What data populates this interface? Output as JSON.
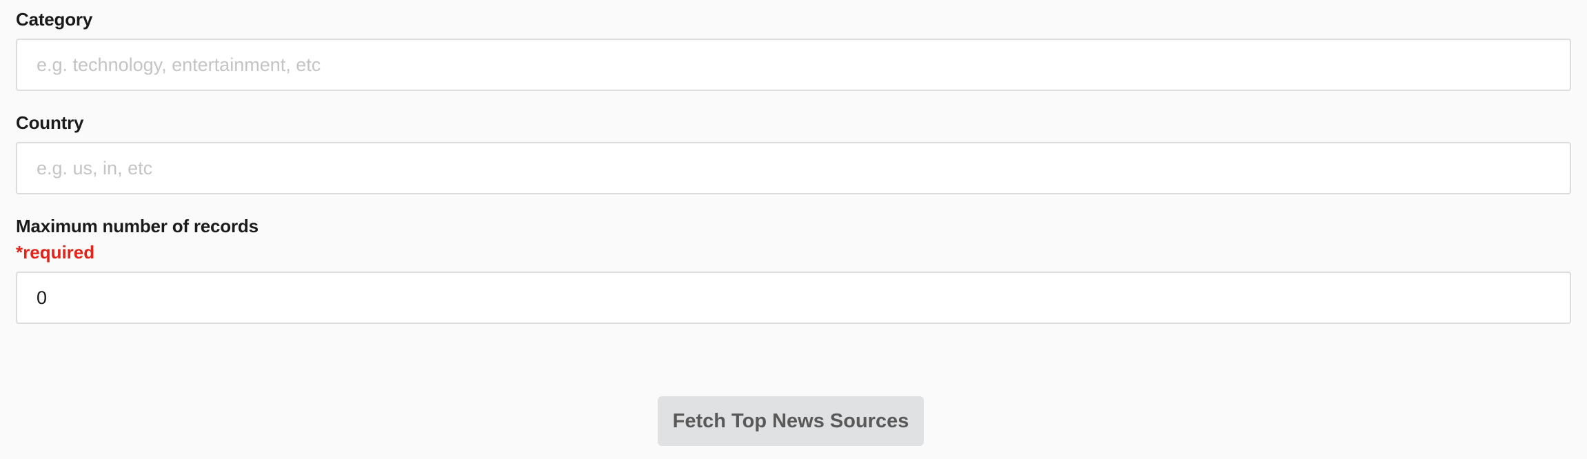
{
  "form": {
    "category": {
      "label": "Category",
      "placeholder": "e.g. technology, entertainment, etc",
      "value": ""
    },
    "country": {
      "label": "Country",
      "placeholder": "e.g. us, in, etc",
      "value": ""
    },
    "max_records": {
      "label": "Maximum number of records",
      "required_text": "*required",
      "value": "0"
    },
    "submit_label": "Fetch Top News Sources"
  },
  "colors": {
    "required": "#e2231a",
    "button_bg": "#e0e1e2",
    "button_text": "#595959"
  }
}
